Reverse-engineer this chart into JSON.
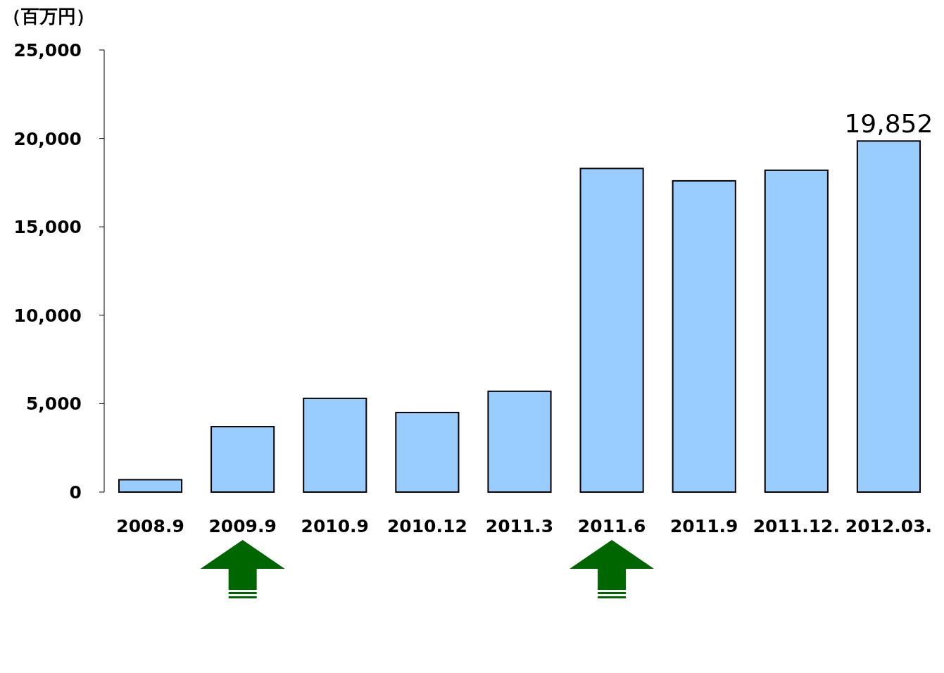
{
  "chart_data": {
    "type": "bar",
    "ylabel": "（百万円）",
    "categories": [
      "2008.9",
      "2009.9",
      "2010.9",
      "2010.12",
      "2011.3",
      "2011.6",
      "2011.9",
      "2011.12.",
      "2012.03."
    ],
    "values": [
      700,
      3700,
      5300,
      4500,
      5700,
      18300,
      17600,
      18200,
      19852
    ],
    "value_labels": [
      null,
      null,
      null,
      null,
      null,
      null,
      null,
      null,
      "19,852"
    ],
    "color": "#99ccff",
    "ylim": [
      0,
      25000
    ],
    "yticks": [
      0,
      {
        "value": 5000,
        "label": "5,000"
      },
      {
        "value": 10000,
        "label": "10,000"
      },
      {
        "value": 15000,
        "label": "15,000"
      },
      {
        "value": 20000,
        "label": "20,000"
      },
      {
        "value": 25000,
        "label": "25,000"
      }
    ],
    "grid": false
  }
}
